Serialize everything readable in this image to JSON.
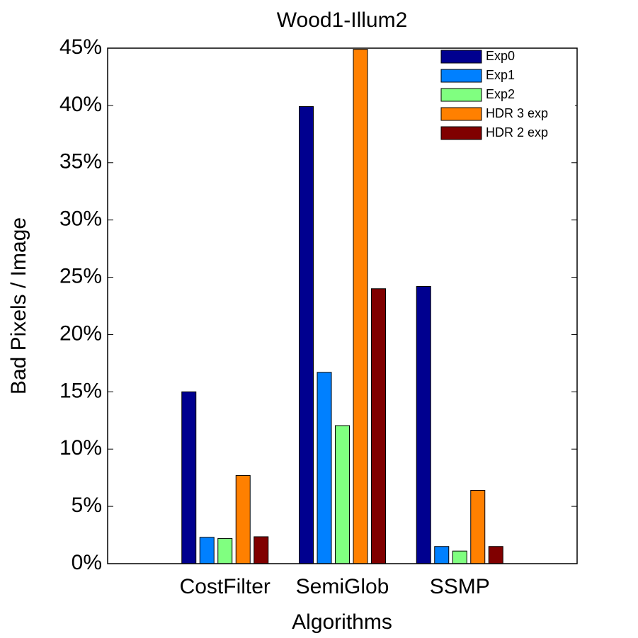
{
  "chart_data": {
    "type": "bar",
    "title": "Wood1-Illum2",
    "x_label": "Algorithms",
    "y_label": "Bad Pixels / Image",
    "categories": [
      "CostFilter",
      "SemiGlob",
      "SSMP"
    ],
    "series": [
      {
        "name": "Exp0",
        "color": "#00008f",
        "values": [
          15.0,
          39.9,
          24.2
        ]
      },
      {
        "name": "Exp1",
        "color": "#0080ff",
        "values": [
          2.3,
          16.7,
          1.5
        ]
      },
      {
        "name": "Exp2",
        "color": "#80ff80",
        "values": [
          2.2,
          12.05,
          1.1
        ]
      },
      {
        "name": "HDR 3 exp",
        "color": "#ff8000",
        "values": [
          7.7,
          44.9,
          6.4
        ]
      },
      {
        "name": "HDR 2 exp",
        "color": "#800000",
        "values": [
          2.35,
          24.0,
          1.5
        ]
      }
    ],
    "ylim": [
      0,
      45
    ],
    "yticks": [
      {
        "value": 0,
        "label": "0%"
      },
      {
        "value": 5,
        "label": "5%"
      },
      {
        "value": 10,
        "label": "10%"
      },
      {
        "value": 15,
        "label": "15%"
      },
      {
        "value": 20,
        "label": "20%"
      },
      {
        "value": 25,
        "label": "25%"
      },
      {
        "value": 30,
        "label": "30%"
      },
      {
        "value": 35,
        "label": "35%"
      },
      {
        "value": 40,
        "label": "40%"
      },
      {
        "value": 45,
        "label": "45%"
      }
    ],
    "legend": "upper right"
  }
}
